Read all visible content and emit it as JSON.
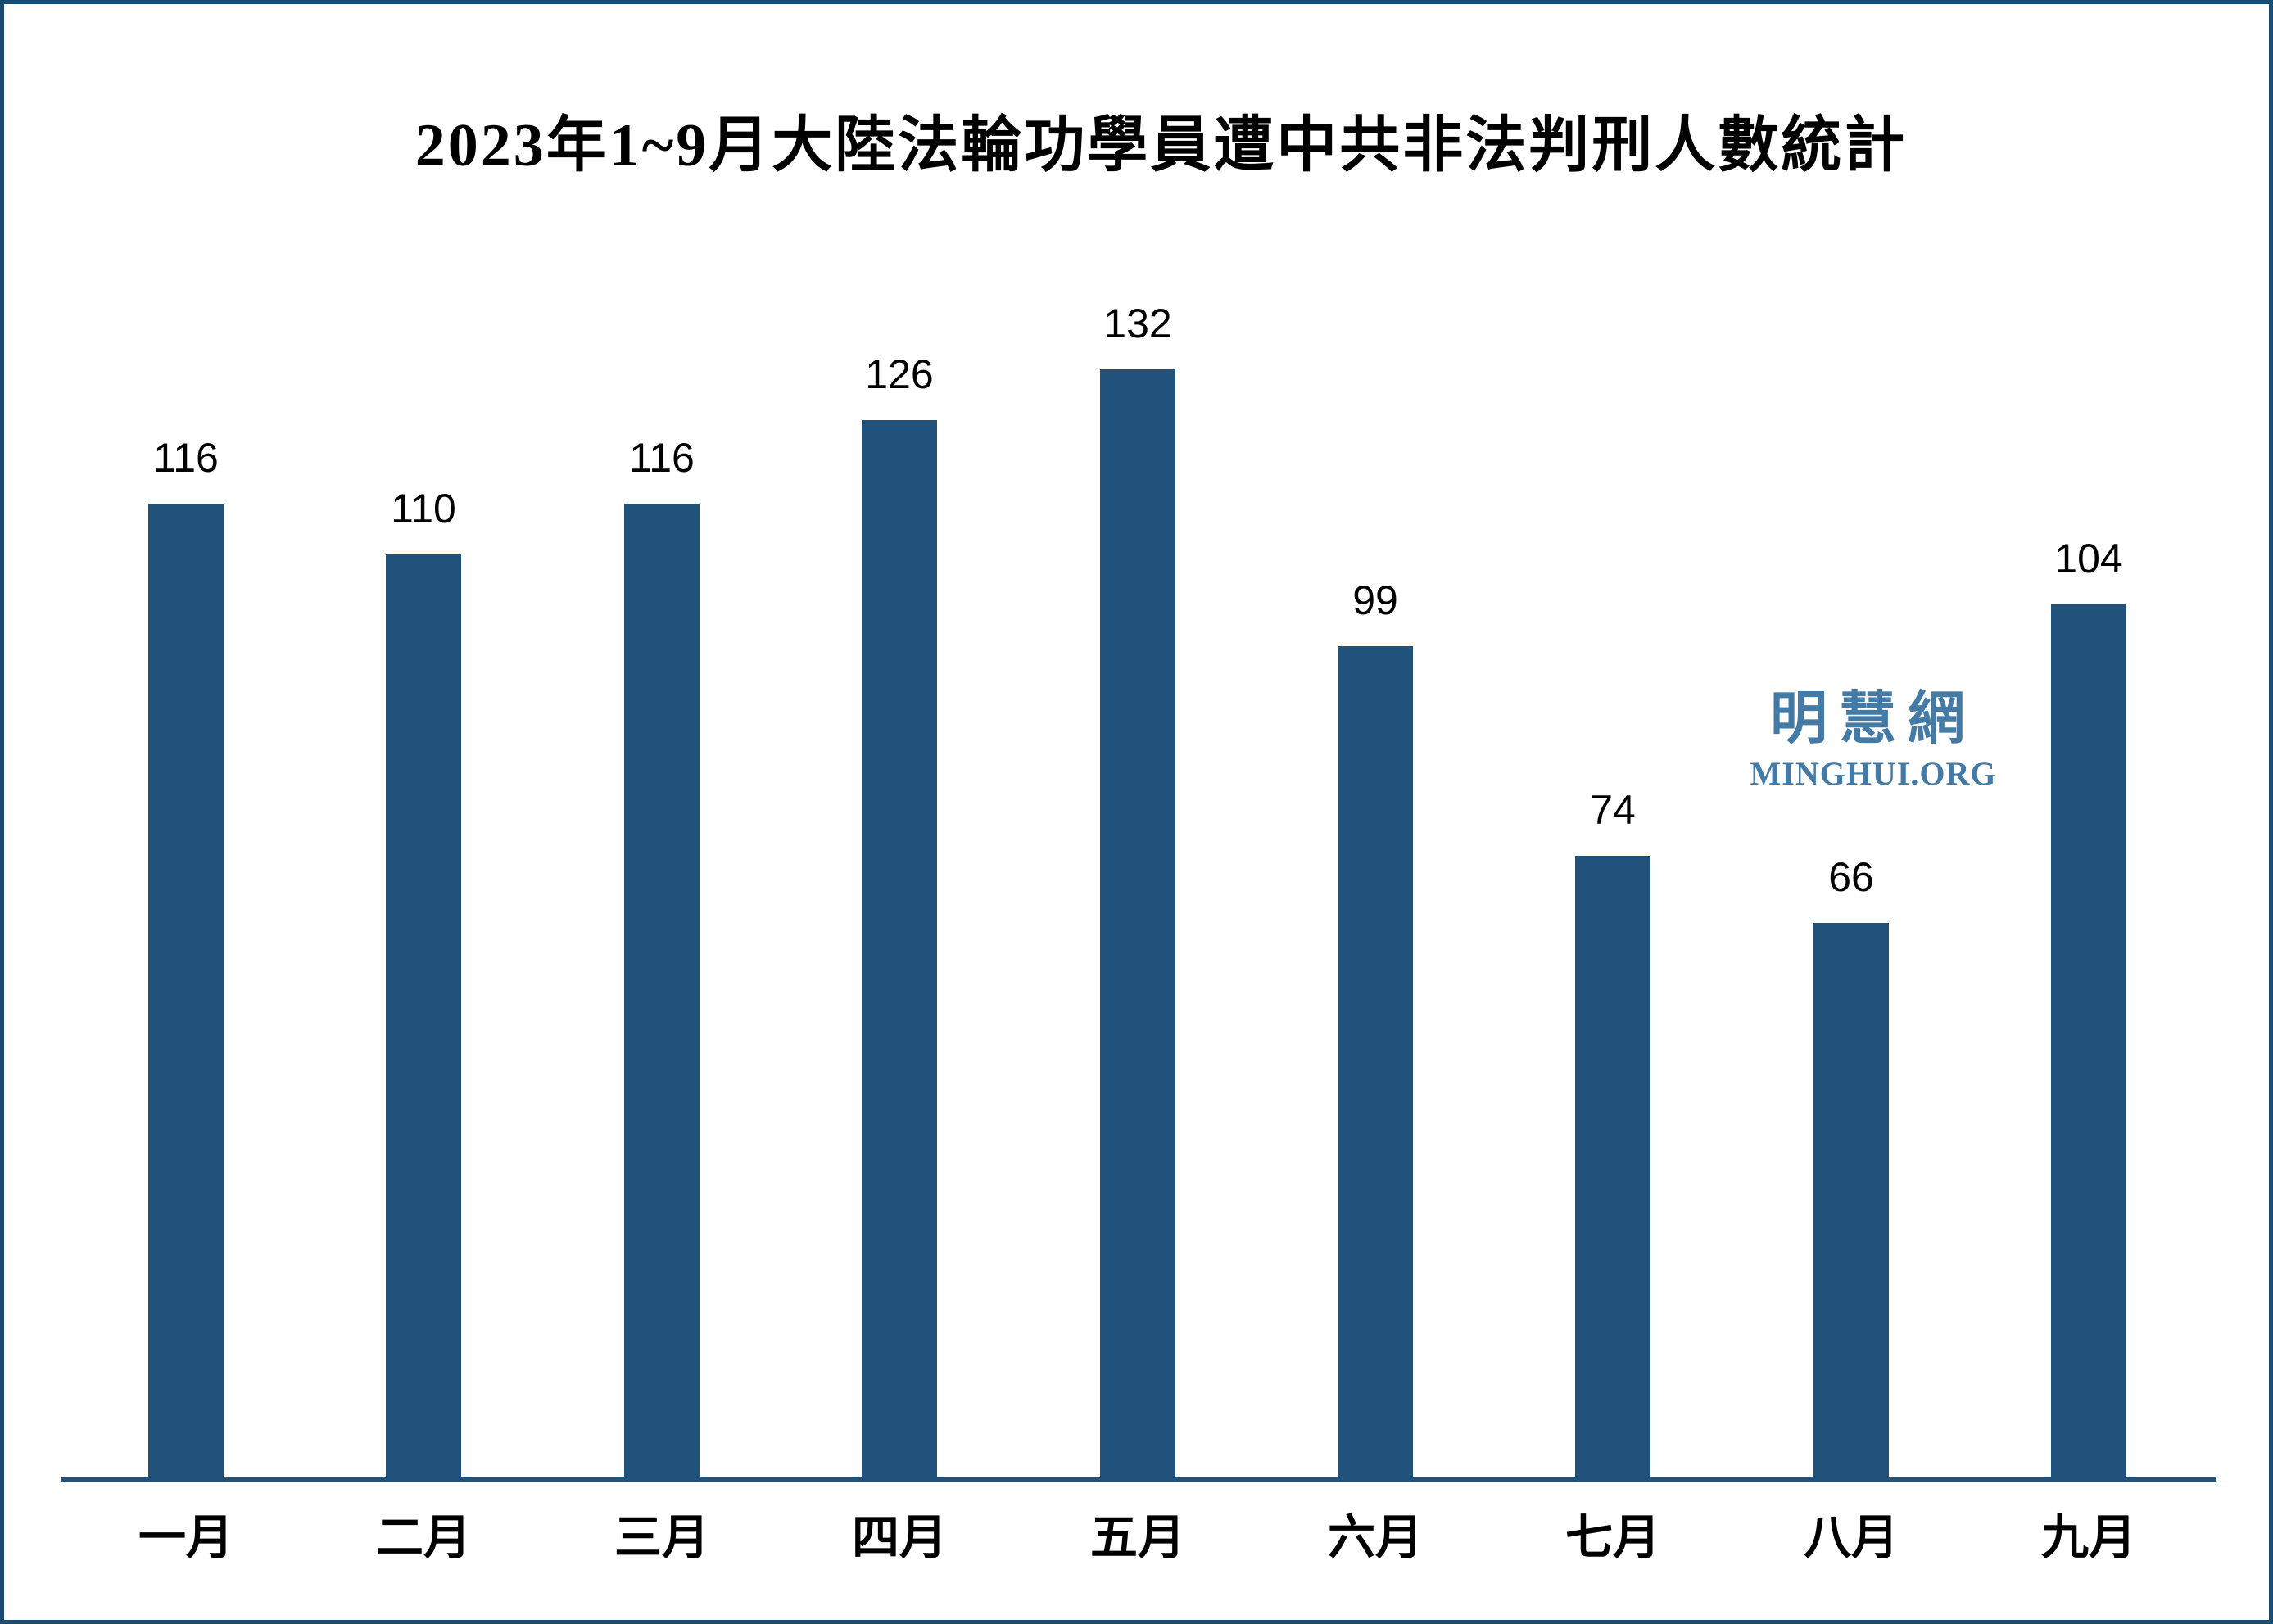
{
  "page": {
    "background_color": "#FFFFFF",
    "border_color": "#1A4A6E"
  },
  "chart_data": {
    "type": "bar",
    "title": "2023年1~9月大陸法輪功學員遭中共非法判刑人數統計",
    "categories": [
      "一月",
      "二月",
      "三月",
      "四月",
      "五月",
      "六月",
      "七月",
      "八月",
      "九月"
    ],
    "values": [
      116,
      110,
      116,
      126,
      132,
      99,
      74,
      66,
      104
    ],
    "xlabel": "",
    "ylabel": "",
    "value_labels_shown": true,
    "gridlines": false,
    "legend": false,
    "y_axis_visible": false,
    "bar_color": "#21527B",
    "axis_line_color": "#21527B",
    "label_color": "#000000"
  },
  "watermark": {
    "line1": "明慧網",
    "line2": "MINGHUI.ORG",
    "color": "#447AA6"
  }
}
